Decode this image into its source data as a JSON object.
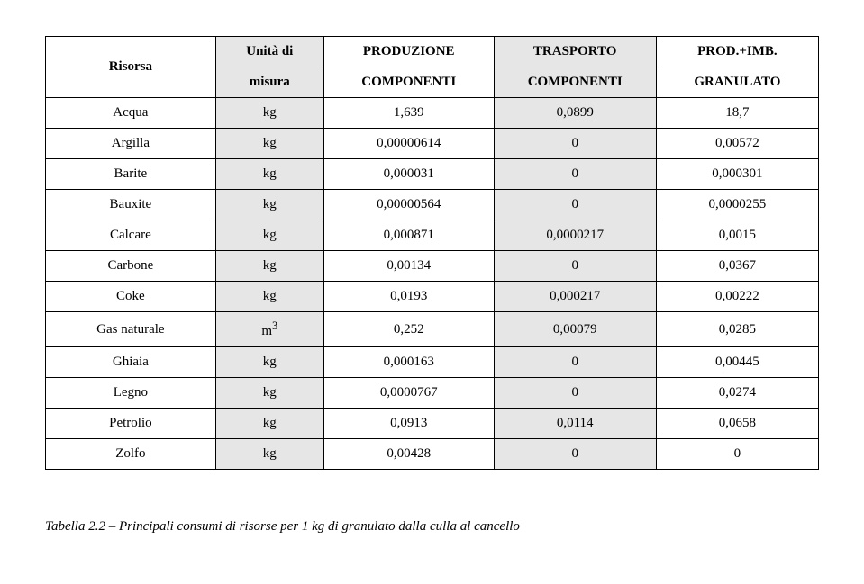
{
  "table": {
    "headers": {
      "resource": "Risorsa",
      "unit_l1": "Unità di",
      "unit_l2": "misura",
      "prod_l1": "PRODUZIONE",
      "prod_l2": "COMPONENTI",
      "trans_l1": "TRASPORTO",
      "trans_l2": "COMPONENTI",
      "granul_l1": "PROD.+IMB.",
      "granul_l2": "GRANULATO"
    },
    "rows": [
      {
        "name": "Acqua",
        "unit": "kg",
        "prod": "1,639",
        "trans": "0,0899",
        "granul": "18,7"
      },
      {
        "name": "Argilla",
        "unit": "kg",
        "prod": "0,00000614",
        "trans": "0",
        "granul": "0,00572"
      },
      {
        "name": "Barite",
        "unit": "kg",
        "prod": "0,000031",
        "trans": "0",
        "granul": "0,000301"
      },
      {
        "name": "Bauxite",
        "unit": "kg",
        "prod": "0,00000564",
        "trans": "0",
        "granul": "0,0000255"
      },
      {
        "name": "Calcare",
        "unit": "kg",
        "prod": "0,000871",
        "trans": "0,0000217",
        "granul": "0,0015"
      },
      {
        "name": "Carbone",
        "unit": "kg",
        "prod": "0,00134",
        "trans": "0",
        "granul": "0,0367"
      },
      {
        "name": "Coke",
        "unit": "kg",
        "prod": "0,0193",
        "trans": "0,000217",
        "granul": "0,00222"
      },
      {
        "name": "Gas naturale",
        "unit": "m",
        "unit_sup": "3",
        "prod": "0,252",
        "trans": "0,00079",
        "granul": "0,0285"
      },
      {
        "name": "Ghiaia",
        "unit": "kg",
        "prod": "0,000163",
        "trans": "0",
        "granul": "0,00445"
      },
      {
        "name": "Legno",
        "unit": "kg",
        "prod": "0,0000767",
        "trans": "0",
        "granul": "0,0274"
      },
      {
        "name": "Petrolio",
        "unit": "kg",
        "prod": "0,0913",
        "trans": "0,0114",
        "granul": "0,0658"
      },
      {
        "name": "Zolfo",
        "unit": "kg",
        "prod": "0,00428",
        "trans": "0",
        "granul": "0"
      }
    ]
  },
  "caption": "Tabella 2.2 – Principali consumi di risorse per 1 kg di granulato dalla culla al cancello",
  "style": {
    "shade_color": "#e6e6e6",
    "border_color": "#000000",
    "font_family": "Times New Roman",
    "font_size_cell": 15,
    "font_size_caption": 15
  }
}
